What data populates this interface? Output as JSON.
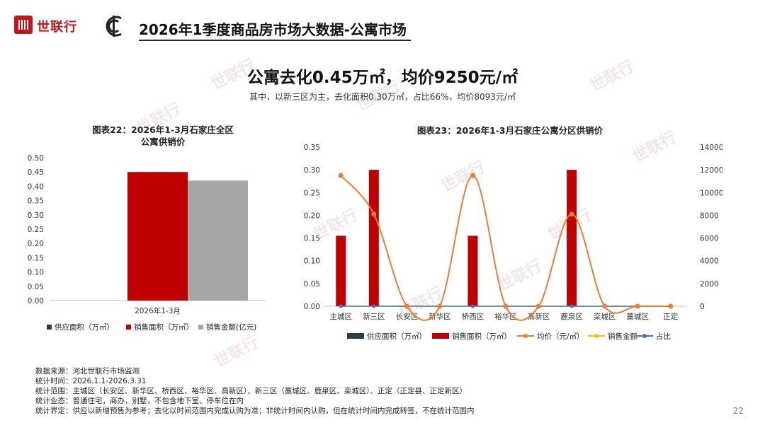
{
  "brand": {
    "logo_text": "世联行",
    "logo_color": "#c0171f"
  },
  "page_title": "2026年1季度商品房市场大数据-公寓市场",
  "headline": "公寓去化0.45万㎡，均价9250元/㎡",
  "subline": "其中，以新三区为主，去化面积0.30万㎡，占比66%，均价8093元/㎡",
  "colors": {
    "supply": "#2f3a4a",
    "sales_area": "#c00000",
    "sales_amount": "#a6a6a6",
    "price": "#ed7d31",
    "amount_line": "#f2c200",
    "share": "#4472c4"
  },
  "chart_data": [
    {
      "type": "bar",
      "title_lines": [
        "图表22：2026年1-3月石家庄全区",
        "公寓供销价"
      ],
      "categories": [
        "2026年1-3月"
      ],
      "series": [
        {
          "name": "供应面积（万㎡）",
          "values": [
            0
          ]
        },
        {
          "name": "销售面积（万㎡）",
          "values": [
            0.45
          ]
        },
        {
          "name": "销售金额(亿元)",
          "values": [
            0.42
          ]
        }
      ],
      "ylim": [
        0,
        0.5
      ],
      "yticks": [
        "0.00",
        "0.05",
        "0.10",
        "0.15",
        "0.20",
        "0.25",
        "0.30",
        "0.35",
        "0.40",
        "0.45",
        "0.50"
      ],
      "legend_position": "bottom"
    },
    {
      "type": "bar",
      "title": "图表23：2026年1-3月石家庄公寓分区供销价",
      "categories": [
        "主城区",
        "新三区",
        "长安区",
        "新华区",
        "桥西区",
        "裕华区",
        "高新区",
        "鹿泉区",
        "栾城区",
        "藁城区",
        "正定"
      ],
      "series": [
        {
          "name": "供应面积（万㎡）",
          "axis": "left",
          "values": [
            0,
            0,
            0,
            0,
            0,
            0,
            0,
            0,
            0,
            0,
            0
          ]
        },
        {
          "name": "销售面积（万㎡）",
          "axis": "left",
          "values": [
            0.155,
            0.3,
            0,
            0,
            0.155,
            0,
            0,
            0.3,
            0,
            0,
            0
          ]
        },
        {
          "name": "均价（元/㎡）",
          "axis": "right",
          "line": true,
          "values": [
            11500,
            8100,
            0,
            0,
            11500,
            0,
            0,
            8100,
            0,
            0,
            0
          ]
        },
        {
          "name": "销售金额",
          "axis": "left",
          "line": true,
          "values": [
            0,
            0,
            0,
            0,
            0,
            0,
            0,
            0,
            0,
            0,
            0
          ]
        },
        {
          "name": "占比",
          "axis": "left",
          "line": true,
          "values": [
            0,
            0,
            0,
            0,
            0,
            0,
            0,
            0,
            0,
            0,
            0
          ]
        }
      ],
      "ylim": [
        0,
        0.35
      ],
      "yticks": [
        "0.00",
        "0.05",
        "0.10",
        "0.15",
        "0.20",
        "0.25",
        "0.30",
        "0.35"
      ],
      "y2lim": [
        0,
        14000
      ],
      "y2ticks": [
        "0",
        "2000",
        "4000",
        "6000",
        "8000",
        "10000",
        "12000",
        "14000"
      ],
      "legend_position": "bottom"
    }
  ],
  "notes": [
    "数据来源：河北世联行市场监测",
    "统计时间：2026.1.1-2026.3.31",
    "统计范围：主城区（长安区、新华区、桥西区、裕华区、高新区）、新三区（藁城区、鹿泉区、栾城区）、正定（正定县、正定新区）",
    "统计业态：普通住宅，商办，别墅，不包含地下室、停车位在内",
    "统计界定：供应以新增预售为参考；去化以时间范围内完成认购为准；非统计时间内认购，但在统计时间内完成转签，不在统计范围内"
  ],
  "page_number": "22",
  "watermark_text": "世联行"
}
